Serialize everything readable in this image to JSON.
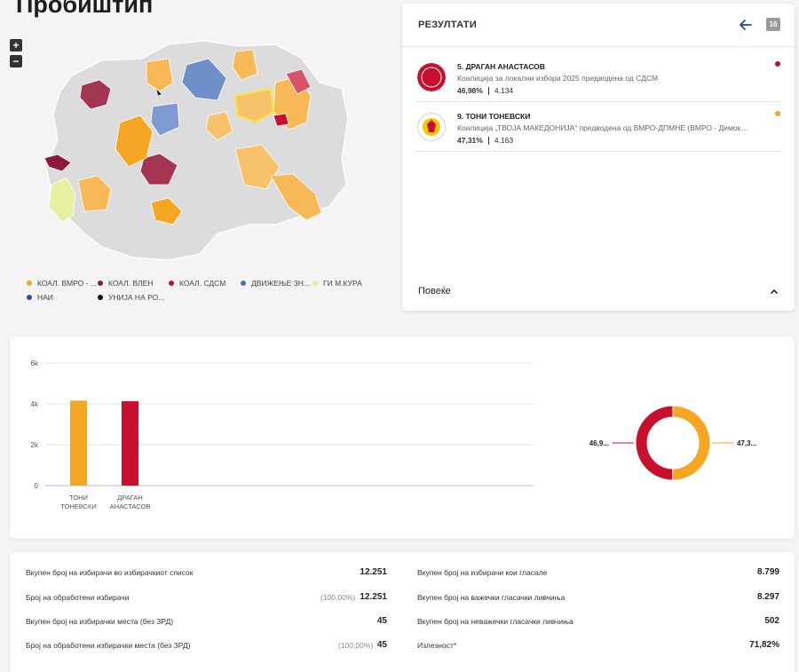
{
  "page": {
    "title": "Пробиштип"
  },
  "zoom": {
    "in_label": "+",
    "out_label": "−"
  },
  "legend": [
    {
      "label": "КОАЛ. ВМРО - ...",
      "color": "#f5a623"
    },
    {
      "label": "КОАЛ. ВЛЕН",
      "color": "#8b1a3a"
    },
    {
      "label": "КОАЛ. СДСМ",
      "color": "#c8102e"
    },
    {
      "label": "ДВИЖЕЊЕ ЗН...",
      "color": "#4a72b8"
    },
    {
      "label": "ГИ М.КУРА",
      "color": "#e6f0a0"
    },
    {
      "label": "НАИ",
      "color": "#2d4f9e"
    },
    {
      "label": "УНИЈА НА РО...",
      "color": "#111111"
    }
  ],
  "results": {
    "title": "РЕЗУЛТАТИ",
    "calendar_label": "16",
    "more_label": "Повеќе",
    "candidates": [
      {
        "name": "5. ДРАГАН АНАСТАСОВ",
        "coalition": "Коалиција за локални избори 2025 предводена од СДСМ",
        "percent": "46,98%",
        "votes": "4.134",
        "color": "#c8102e",
        "logo": "СДСМ"
      },
      {
        "name": "9. ТОНИ ТОНЕВСКИ",
        "coalition": "Коалиција „ТВОЈА МАКЕДОНИЈА“ предводена од ВМРО-ДПМНЕ (ВМРО - Демократска партија за македонско национално единство)",
        "percent": "47,31%",
        "votes": "4.163",
        "color": "#f5a623",
        "logo": "ВМРО"
      }
    ]
  },
  "chart_data": [
    {
      "type": "bar",
      "categories": [
        "ТОНИ ТОНЕВСКИ",
        "ДРАГАН АНАСТАСОВ"
      ],
      "category_lines": [
        [
          "ТОНИ",
          "ТОНЕВСКИ"
        ],
        [
          "ДРАГАН",
          "АНАСТАСОВ"
        ]
      ],
      "values": [
        4163,
        4134
      ],
      "colors": [
        "#f5a623",
        "#c8102e"
      ],
      "ylim": [
        0,
        6000
      ],
      "yticks": [
        0,
        2000,
        4000,
        6000
      ],
      "ytick_labels": [
        "0",
        "2k",
        "4k",
        "6k"
      ],
      "grid": true
    },
    {
      "type": "pie",
      "labels": [
        "47,3...",
        "46,9..."
      ],
      "values": [
        47.31,
        46.98
      ],
      "colors": [
        "#f5a623",
        "#c8102e"
      ]
    }
  ],
  "stats": {
    "left": [
      {
        "label": "Вкупен број на избирачи во избирачкиот список",
        "pct": "",
        "value": "12.251"
      },
      {
        "label": "Број на обработени избирачи",
        "pct": "(100,00%)",
        "value": "12.251"
      },
      {
        "label": "Вкупен број на избирачки места (без ЗРД)",
        "pct": "",
        "value": "45"
      },
      {
        "label": "Број на обработени избирачки места (без ЗРД)",
        "pct": "(100,00%)",
        "value": "45"
      }
    ],
    "right": [
      {
        "label": "Вкупен број на избирачи кои гласале",
        "value": "8.799"
      },
      {
        "label": "Вкупен број на важечки гласачки ливчиња",
        "value": "8.297"
      },
      {
        "label": "Вкупен број на неважечки гласачки ливчиња",
        "value": "502"
      },
      {
        "label": "Излезност*",
        "value": "71,82%"
      }
    ]
  }
}
